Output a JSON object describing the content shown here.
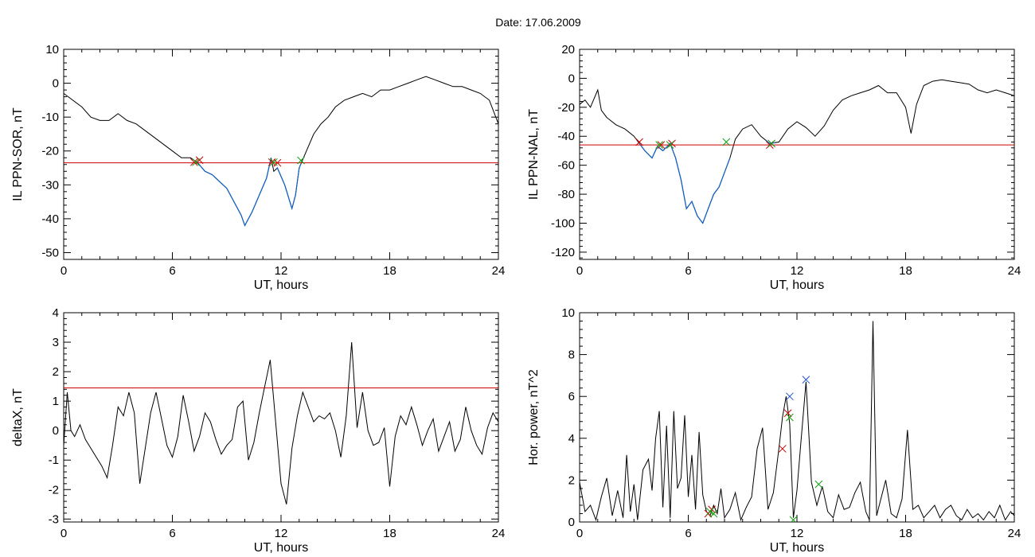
{
  "title": "Date:  17.06.2009",
  "colors": {
    "trace": "#000000",
    "highlight": "#1060c8",
    "threshold": "#cc0000",
    "marker_red": "#cc0000",
    "marker_green": "#10a010",
    "marker_blue": "#2050d0"
  },
  "chart_data": [
    {
      "id": "p1",
      "type": "line",
      "title": "",
      "xlabel": "UT, hours",
      "ylabel": "IL PPN-SOR, nT",
      "xlim": [
        0,
        24
      ],
      "ylim": [
        -52,
        10
      ],
      "xticks": [
        0,
        6,
        12,
        18,
        24
      ],
      "yticks": [
        -50,
        -40,
        -30,
        -20,
        -10,
        0,
        10
      ],
      "threshold": -23.5,
      "highlight_ranges": [
        [
          7.4,
          11.45
        ],
        [
          11.75,
          13.1
        ]
      ],
      "series": [
        {
          "x": [
            0,
            0.5,
            1,
            1.5,
            2,
            2.5,
            3,
            3.5,
            4,
            4.5,
            5,
            5.5,
            6,
            6.5,
            7,
            7.4,
            7.8,
            8.2,
            8.6,
            9,
            9.4,
            9.8,
            10.0,
            10.4,
            10.8,
            11.2,
            11.45,
            11.6,
            11.8,
            12.2,
            12.6,
            12.8,
            13.0,
            13.4,
            13.8,
            14.2,
            14.6,
            15,
            15.5,
            16,
            16.5,
            17,
            17.5,
            18,
            18.5,
            19,
            19.5,
            20,
            20.5,
            21,
            21.5,
            22,
            22.5,
            23,
            23.5,
            24
          ],
          "y": [
            -3,
            -5,
            -7,
            -10,
            -11,
            -11,
            -9,
            -11,
            -12,
            -14,
            -16,
            -18,
            -20,
            -22,
            -22,
            -23.5,
            -26,
            -27,
            -29,
            -31,
            -35,
            -39,
            -42,
            -38,
            -33,
            -28,
            -22,
            -26,
            -25,
            -30,
            -37,
            -33,
            -25,
            -20,
            -15,
            -12,
            -10,
            -7,
            -5,
            -4,
            -3,
            -4,
            -2,
            -2,
            -1,
            0,
            1,
            2,
            1,
            0,
            -1,
            -1,
            -2,
            -3,
            -5,
            -12
          ]
        }
      ],
      "markers": [
        {
          "x": 7.2,
          "y": -23.3,
          "color": "red"
        },
        {
          "x": 7.5,
          "y": -22.7,
          "color": "red"
        },
        {
          "x": 7.3,
          "y": -23.3,
          "color": "green"
        },
        {
          "x": 11.5,
          "y": -23.3,
          "color": "red"
        },
        {
          "x": 11.8,
          "y": -23.5,
          "color": "red"
        },
        {
          "x": 11.6,
          "y": -23.3,
          "color": "green"
        },
        {
          "x": 13.1,
          "y": -22.8,
          "color": "green"
        }
      ]
    },
    {
      "id": "p2",
      "type": "line",
      "title": "",
      "xlabel": "UT, hours",
      "ylabel": "IL PPN-NAL, nT",
      "xlim": [
        0,
        24
      ],
      "ylim": [
        -125,
        20
      ],
      "xticks": [
        0,
        6,
        12,
        18,
        24
      ],
      "yticks": [
        -120,
        -100,
        -80,
        -60,
        -40,
        -20,
        0,
        20
      ],
      "threshold": -46,
      "highlight_ranges": [
        [
          3.3,
          5.5
        ],
        [
          5.5,
          8.3
        ],
        [
          10.3,
          10.8
        ]
      ],
      "series": [
        {
          "x": [
            0,
            0.3,
            0.6,
            1.0,
            1.2,
            1.5,
            2,
            2.5,
            3,
            3.3,
            3.6,
            4,
            4.3,
            4.6,
            5.0,
            5.3,
            5.6,
            5.9,
            6.2,
            6.5,
            6.8,
            7.1,
            7.4,
            7.7,
            8.0,
            8.3,
            8.6,
            9,
            9.5,
            10,
            10.5,
            11,
            11.5,
            12,
            12.5,
            13,
            13.5,
            14,
            14.5,
            15,
            15.5,
            16,
            16.5,
            17,
            17.5,
            18,
            18.3,
            18.6,
            19,
            19.5,
            20,
            20.5,
            21,
            21.5,
            22,
            22.5,
            23,
            23.5,
            24
          ],
          "y": [
            -18,
            -15,
            -20,
            -8,
            -22,
            -27,
            -32,
            -35,
            -40,
            -45,
            -50,
            -55,
            -47,
            -50,
            -45,
            -55,
            -70,
            -90,
            -85,
            -95,
            -100,
            -90,
            -80,
            -75,
            -65,
            -55,
            -42,
            -35,
            -32,
            -40,
            -45,
            -44,
            -35,
            -30,
            -34,
            -40,
            -33,
            -22,
            -15,
            -12,
            -10,
            -8,
            -5,
            -10,
            -10,
            -20,
            -38,
            -18,
            -5,
            -2,
            -1,
            -2,
            -3,
            -4,
            -8,
            -10,
            -8,
            -10,
            -12
          ]
        }
      ],
      "markers": [
        {
          "x": 3.3,
          "y": -44,
          "color": "red"
        },
        {
          "x": 4.5,
          "y": -46,
          "color": "red"
        },
        {
          "x": 5.1,
          "y": -45,
          "color": "red"
        },
        {
          "x": 4.4,
          "y": -46,
          "color": "green"
        },
        {
          "x": 5.0,
          "y": -46,
          "color": "green"
        },
        {
          "x": 8.1,
          "y": -44,
          "color": "green"
        },
        {
          "x": 10.5,
          "y": -46,
          "color": "red"
        },
        {
          "x": 10.6,
          "y": -45,
          "color": "green"
        }
      ]
    },
    {
      "id": "p3",
      "type": "line",
      "title": "",
      "xlabel": "UT, hours",
      "ylabel": "deltaX, nT",
      "xlim": [
        0,
        24
      ],
      "ylim": [
        -3.1,
        4
      ],
      "xticks": [
        0,
        6,
        12,
        18,
        24
      ],
      "yticks": [
        -3,
        -2,
        -1,
        0,
        1,
        2,
        3,
        4
      ],
      "threshold": 1.45,
      "highlight_ranges": [],
      "series": [
        {
          "x": [
            0,
            0.2,
            0.4,
            0.6,
            0.9,
            1.2,
            1.5,
            1.8,
            2.1,
            2.4,
            2.7,
            3.0,
            3.3,
            3.6,
            3.9,
            4.2,
            4.5,
            4.8,
            5.1,
            5.4,
            5.7,
            6.0,
            6.3,
            6.6,
            6.9,
            7.2,
            7.5,
            7.8,
            8.1,
            8.4,
            8.7,
            9.0,
            9.3,
            9.6,
            9.9,
            10.2,
            10.5,
            10.8,
            11.1,
            11.4,
            11.7,
            12.0,
            12.3,
            12.6,
            12.9,
            13.2,
            13.5,
            13.8,
            14.1,
            14.4,
            14.7,
            15.0,
            15.3,
            15.6,
            15.9,
            16.2,
            16.5,
            16.8,
            17.1,
            17.4,
            17.7,
            18.0,
            18.3,
            18.6,
            18.9,
            19.2,
            19.5,
            19.8,
            20.1,
            20.4,
            20.7,
            21.0,
            21.3,
            21.6,
            21.9,
            22.2,
            22.5,
            22.8,
            23.1,
            23.4,
            23.7,
            24
          ],
          "y": [
            -0.5,
            1.3,
            0.0,
            -0.2,
            0.2,
            -0.3,
            -0.6,
            -0.9,
            -1.2,
            -1.6,
            -0.5,
            0.8,
            0.5,
            1.3,
            0.6,
            -1.8,
            -0.6,
            0.6,
            1.3,
            0.4,
            -0.5,
            -0.9,
            -0.2,
            1.2,
            0.3,
            -0.7,
            -0.2,
            0.6,
            0.3,
            -0.3,
            -0.8,
            -0.5,
            -0.3,
            0.8,
            1.0,
            -1.0,
            -0.4,
            0.6,
            1.5,
            2.4,
            0.3,
            -1.8,
            -2.5,
            -0.6,
            0.5,
            1.3,
            0.8,
            0.3,
            0.5,
            0.4,
            0.6,
            0.0,
            -0.9,
            0.5,
            3.0,
            0.1,
            1.3,
            0.0,
            -0.5,
            -0.4,
            0.1,
            -1.9,
            -0.2,
            0.5,
            0.2,
            0.8,
            0.2,
            -0.5,
            0.0,
            0.4,
            -0.7,
            -0.2,
            0.3,
            -0.7,
            -0.3,
            0.8,
            0.0,
            -0.5,
            -0.8,
            0.1,
            0.6,
            0.3
          ]
        }
      ],
      "markers": []
    },
    {
      "id": "p4",
      "type": "line",
      "title": "",
      "xlabel": "UT, hours",
      "ylabel": "Hor. power, nT^2",
      "xlim": [
        0,
        24
      ],
      "ylim": [
        0,
        10
      ],
      "xticks": [
        0,
        6,
        12,
        18,
        24
      ],
      "yticks": [
        0,
        2,
        4,
        6,
        8,
        10
      ],
      "threshold": null,
      "highlight_ranges": [],
      "series": [
        {
          "x": [
            0,
            0.3,
            0.6,
            0.9,
            1.2,
            1.5,
            1.8,
            2.1,
            2.4,
            2.6,
            2.8,
            3.0,
            3.2,
            3.5,
            3.8,
            4.0,
            4.2,
            4.4,
            4.6,
            4.8,
            5.0,
            5.2,
            5.4,
            5.6,
            5.8,
            6.0,
            6.2,
            6.4,
            6.6,
            6.8,
            7.0,
            7.2,
            7.4,
            7.6,
            7.8,
            8.0,
            8.3,
            8.6,
            8.9,
            9.2,
            9.5,
            9.8,
            10.1,
            10.4,
            10.7,
            11.0,
            11.2,
            11.4,
            11.6,
            11.8,
            12.0,
            12.2,
            12.5,
            12.8,
            13.1,
            13.4,
            13.7,
            14.0,
            14.3,
            14.6,
            14.9,
            15.2,
            15.5,
            15.8,
            16.0,
            16.2,
            16.4,
            16.6,
            16.9,
            17.2,
            17.5,
            17.8,
            18.1,
            18.4,
            18.7,
            19.0,
            19.3,
            19.6,
            19.9,
            20.2,
            20.5,
            20.8,
            21.1,
            21.4,
            21.7,
            22.0,
            22.3,
            22.6,
            22.9,
            23.2,
            23.5,
            23.8,
            24
          ],
          "y": [
            1.9,
            0.5,
            0.8,
            0.1,
            1.2,
            2.1,
            0.3,
            1.5,
            0.2,
            3.2,
            0.5,
            1.8,
            0.1,
            2.5,
            3.0,
            1.5,
            4.0,
            5.3,
            0.7,
            4.6,
            0.2,
            5.3,
            1.6,
            2.1,
            5.1,
            1.2,
            3.2,
            0.6,
            4.3,
            1.3,
            0.5,
            0.3,
            0.8,
            0.4,
            1.6,
            0.2,
            0.6,
            1.4,
            0.1,
            0.7,
            1.2,
            3.5,
            4.5,
            0.6,
            1.4,
            3.5,
            5.0,
            6.0,
            4.7,
            0.2,
            1.5,
            3.6,
            6.7,
            1.9,
            0.8,
            1.7,
            0.5,
            0.2,
            1.3,
            0.6,
            0.7,
            1.4,
            1.9,
            0.5,
            0.1,
            9.6,
            0.3,
            1.0,
            2.0,
            0.4,
            0.2,
            1.1,
            4.4,
            0.6,
            0.8,
            0.2,
            0.5,
            0.8,
            0.2,
            0.6,
            0.8,
            0.3,
            0.1,
            0.6,
            0.2,
            0.4,
            0.1,
            0.5,
            0.2,
            0.8,
            0.1,
            0.5,
            0.3
          ]
        }
      ],
      "markers": [
        {
          "x": 7.1,
          "y": 0.4,
          "color": "red"
        },
        {
          "x": 7.3,
          "y": 0.6,
          "color": "red"
        },
        {
          "x": 7.2,
          "y": 0.5,
          "color": "green"
        },
        {
          "x": 7.4,
          "y": 0.4,
          "color": "green"
        },
        {
          "x": 11.2,
          "y": 3.5,
          "color": "red"
        },
        {
          "x": 11.5,
          "y": 5.2,
          "color": "red"
        },
        {
          "x": 11.6,
          "y": 5.0,
          "color": "green"
        },
        {
          "x": 11.8,
          "y": 0.1,
          "color": "green"
        },
        {
          "x": 13.2,
          "y": 1.8,
          "color": "green"
        },
        {
          "x": 11.6,
          "y": 6.0,
          "color": "blue"
        },
        {
          "x": 12.5,
          "y": 6.8,
          "color": "blue"
        }
      ]
    }
  ]
}
